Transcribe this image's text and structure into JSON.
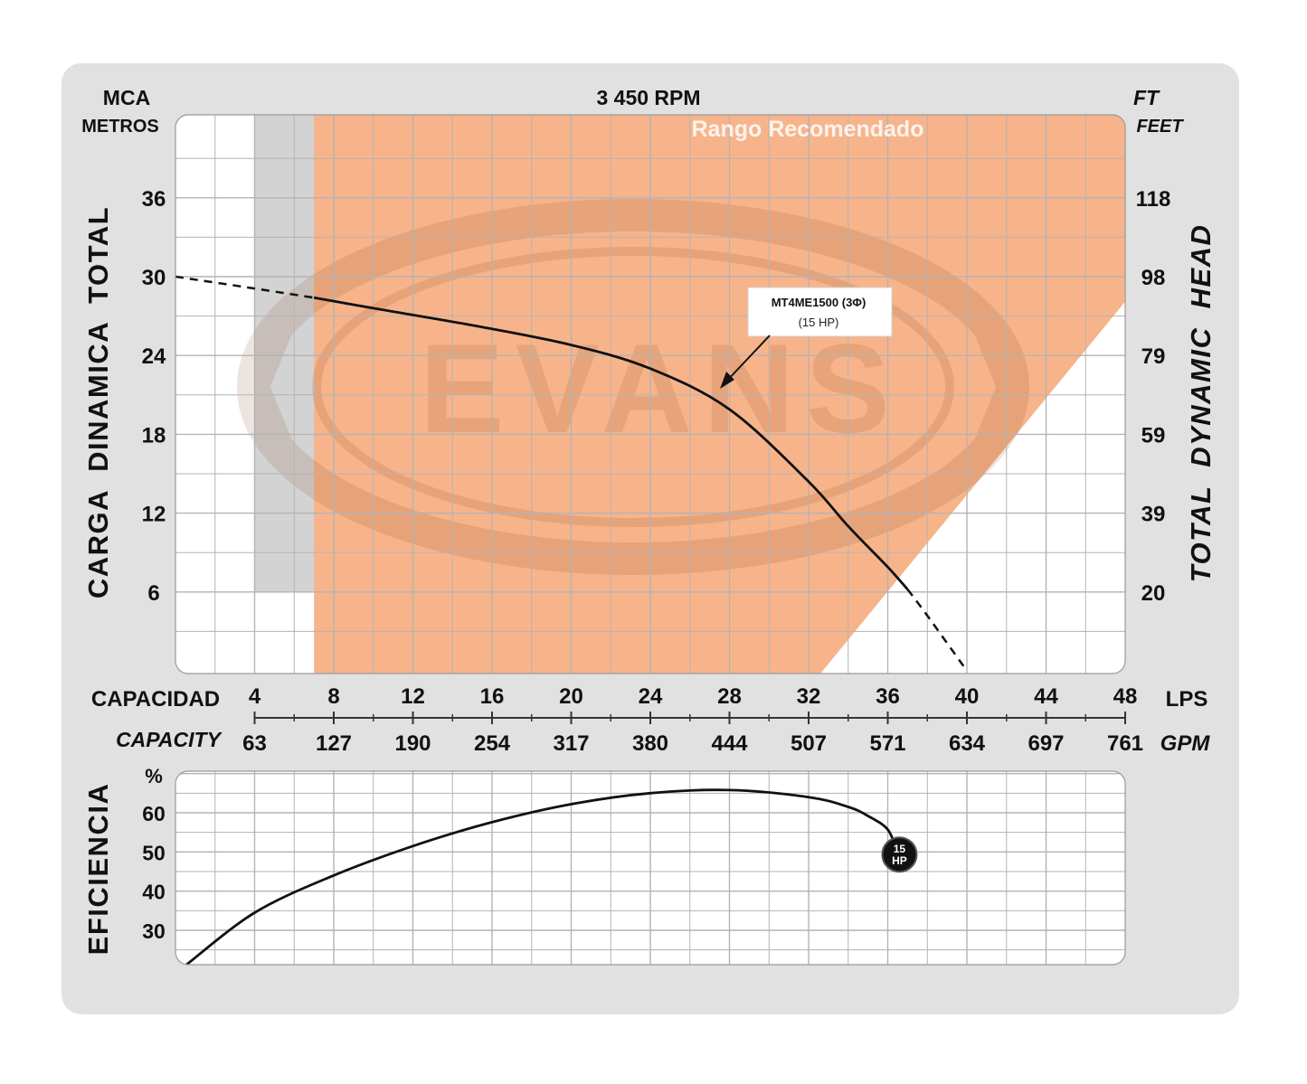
{
  "chart_data": [
    {
      "type": "line",
      "title": "3 450 RPM",
      "band_label": "Rango Recomendado",
      "watermark": "EVANS",
      "ylabel_left": "CARGA  DINAMICA  TOTAL",
      "ylabel_left_units": [
        "MCA",
        "METROS"
      ],
      "ylabel_right": "TOTAL  DYNAMIC  HEAD",
      "ylabel_right_units": [
        "FT",
        "FEET"
      ],
      "xlabel_top": "CAPACIDAD",
      "xunit_top": "LPS",
      "xlabel_bottom": "CAPACITY",
      "xunit_bottom": "GPM",
      "x_ticks_lps": [
        "4",
        "8",
        "12",
        "16",
        "20",
        "24",
        "28",
        "32",
        "36",
        "40",
        "44",
        "48"
      ],
      "x_ticks_gpm": [
        "63",
        "127",
        "190",
        "254",
        "317",
        "380",
        "444",
        "507",
        "571",
        "634",
        "697",
        "761"
      ],
      "y_ticks_left": [
        "36",
        "30",
        "24",
        "18",
        "12",
        "6"
      ],
      "y_ticks_right": [
        "118",
        "98",
        "79",
        "59",
        "39",
        "20"
      ],
      "xlim": [
        0,
        48
      ],
      "ylim": [
        0,
        42
      ],
      "grid": true,
      "recommended_range_lps": [
        7,
        48
      ],
      "colors": {
        "band": "#f7b48b",
        "curve": "#111111",
        "gray_band": "#d3d3d3"
      },
      "series": [
        {
          "name": "MT4ME1500 (3Φ)",
          "sub": "(15 HP)",
          "x": [
            0,
            4,
            7,
            10,
            15,
            20,
            24,
            28,
            32,
            34,
            36,
            37,
            38,
            40
          ],
          "y": [
            30,
            29.1,
            28.4,
            27.6,
            26.3,
            24.8,
            23.0,
            19.9,
            14.4,
            11.0,
            7.9,
            6.2,
            4.2,
            0
          ],
          "dashed_x_ranges": [
            [
              0,
              7
            ],
            [
              37,
              40
            ]
          ]
        }
      ]
    },
    {
      "type": "line",
      "ylabel": "EFICIENCIA",
      "yunit": "%",
      "y_ticks": [
        "60",
        "50",
        "40",
        "30"
      ],
      "xlim": [
        0,
        48
      ],
      "ylim": [
        20.7,
        70.9
      ],
      "grid": true,
      "series": [
        {
          "name": "15 HP",
          "badge": [
            "15",
            "HP"
          ],
          "x": [
            0.5,
            4,
            8,
            12,
            16,
            20,
            24,
            28,
            32,
            34,
            35,
            36,
            36.5
          ],
          "y": [
            21,
            34.5,
            44,
            51.5,
            57.6,
            62.2,
            65,
            65.8,
            64,
            61.5,
            59.2,
            55.7,
            49.8
          ]
        }
      ]
    }
  ]
}
